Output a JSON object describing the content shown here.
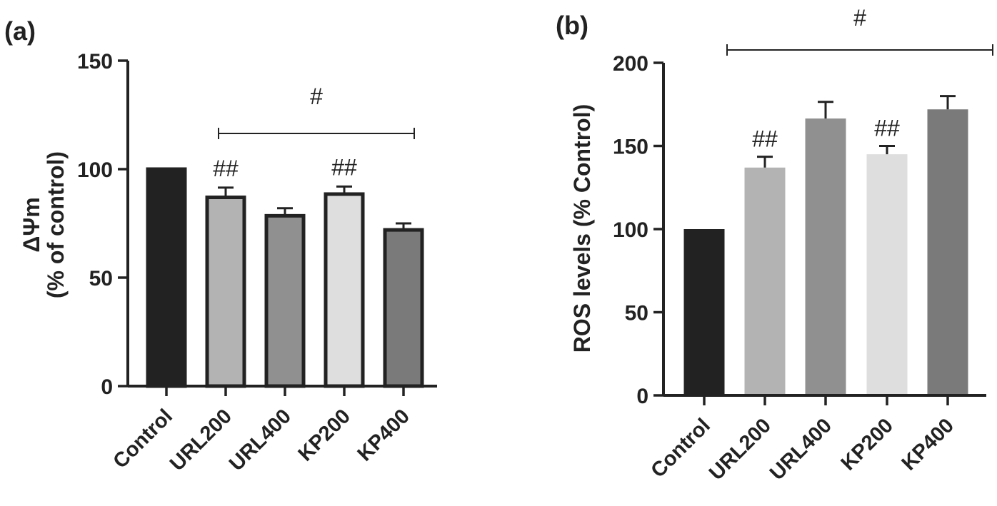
{
  "chart_data": [
    {
      "type": "bar",
      "panel_label": "(a)",
      "categories": [
        "Control",
        "URL200",
        "URL400",
        "KP200",
        "KP400"
      ],
      "values": [
        100,
        87,
        78.5,
        88.5,
        72
      ],
      "errors": [
        0,
        4.5,
        3.5,
        3.5,
        3
      ],
      "bar_colors": [
        "#222222",
        "#b3b3b3",
        "#909090",
        "#dedede",
        "#7a7a7a"
      ],
      "outlined": true,
      "ylabel_line1": "ΔΨm",
      "ylabel_line2": "(%  of control)",
      "ylim": [
        0,
        150
      ],
      "yticks": [
        "0",
        "50",
        "100",
        "150"
      ],
      "bar_annotations": [
        "",
        "##",
        "",
        "##",
        ""
      ],
      "bracket": {
        "from": 1,
        "to": 4,
        "label": "#"
      }
    },
    {
      "type": "bar",
      "panel_label": "(b)",
      "categories": [
        "Control",
        "URL200",
        "URL400",
        "KP200",
        "KP400"
      ],
      "values": [
        100,
        137,
        166.5,
        145,
        172
      ],
      "errors": [
        0,
        6.5,
        10,
        5,
        8
      ],
      "bar_colors": [
        "#222222",
        "#b3b3b3",
        "#909090",
        "#dedede",
        "#7a7a7a"
      ],
      "outlined": false,
      "ylabel": "ROS levels (% Control)",
      "ylim": [
        0,
        200
      ],
      "yticks": [
        "0",
        "50",
        "100",
        "150",
        "200"
      ],
      "bar_annotations": [
        "",
        "##",
        "",
        "##",
        ""
      ],
      "bracket": {
        "from": 0,
        "to": 5,
        "label": "#"
      }
    }
  ]
}
